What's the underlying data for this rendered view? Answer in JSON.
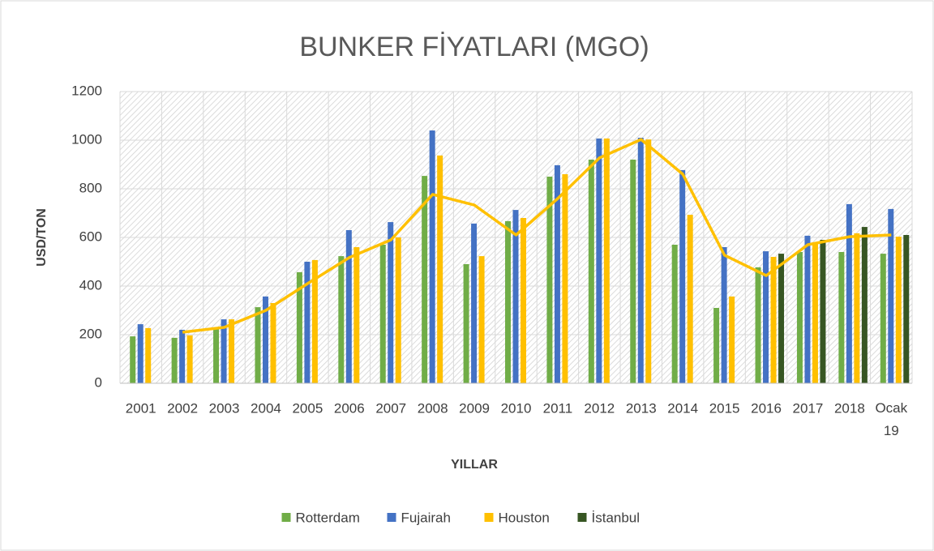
{
  "chart_data": {
    "type": "bar",
    "title": "BUNKER FİYATLARI (MGO)",
    "x_label": "YILLAR",
    "y_label": "USD/TON",
    "categories": [
      "2001",
      "2002",
      "2003",
      "2004",
      "2005",
      "2006",
      "2007",
      "2008",
      "2009",
      "2010",
      "2011",
      "2012",
      "2013",
      "2014",
      "2015",
      "2016",
      "2017",
      "2018",
      "Ocak 19"
    ],
    "series": [
      {
        "name": "Rotterdam",
        "color": "#70ad47",
        "values": [
          193,
          187,
          225,
          313,
          457,
          523,
          570,
          853,
          490,
          667,
          850,
          920,
          920,
          570,
          310,
          477,
          540,
          540,
          533
        ]
      },
      {
        "name": "Fujairah",
        "color": "#4472c4",
        "values": [
          243,
          220,
          263,
          357,
          500,
          630,
          663,
          1040,
          657,
          713,
          897,
          1007,
          1010,
          877,
          560,
          543,
          607,
          737,
          717
        ]
      },
      {
        "name": "Houston",
        "color": "#ffc000",
        "values": [
          227,
          197,
          263,
          330,
          507,
          560,
          600,
          937,
          523,
          680,
          860,
          1007,
          1003,
          693,
          357,
          520,
          573,
          617,
          603
        ]
      },
      {
        "name": "İstanbul",
        "color": "#375623",
        "values": [
          null,
          null,
          null,
          null,
          null,
          null,
          null,
          null,
          null,
          null,
          null,
          null,
          null,
          null,
          null,
          533,
          590,
          643,
          610
        ]
      }
    ],
    "line": {
      "color": "#ffc000",
      "values": [
        null,
        210,
        230,
        300,
        410,
        517,
        590,
        777,
        733,
        610,
        760,
        927,
        1003,
        860,
        527,
        443,
        570,
        603,
        610
      ]
    },
    "ylim": [
      0,
      1200
    ],
    "yticks": [
      0,
      200,
      400,
      600,
      800,
      1000,
      1200
    ],
    "grid": true,
    "legend": "bottom"
  }
}
